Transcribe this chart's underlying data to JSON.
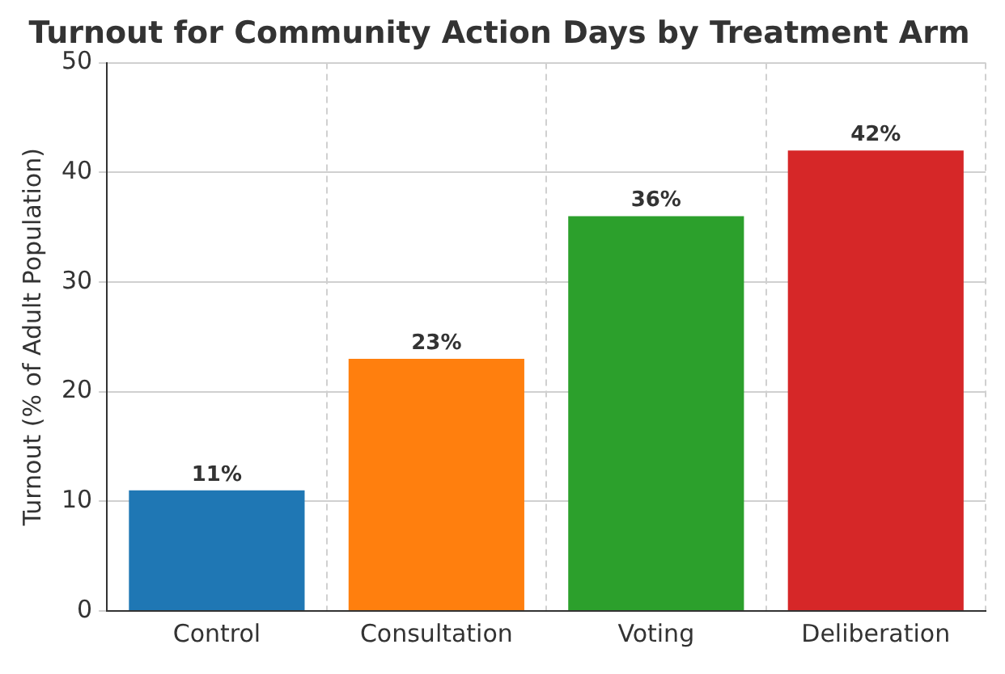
{
  "chart_data": {
    "type": "bar",
    "title": "Turnout for Community Action Days by Treatment Arm",
    "ylabel": "Turnout (% of Adult Population)",
    "categories": [
      "Control",
      "Consultation",
      "Voting",
      "Deliberation"
    ],
    "values": [
      11,
      23,
      36,
      42
    ],
    "colors": [
      "#1f77b4",
      "#ff7f0e",
      "#2ca02c",
      "#d62728"
    ],
    "value_labels": [
      "11%",
      "23%",
      "36%",
      "42%"
    ],
    "ylim": [
      0,
      50
    ],
    "yticks": [
      0,
      10,
      20,
      30,
      40,
      50
    ],
    "grid": true
  }
}
